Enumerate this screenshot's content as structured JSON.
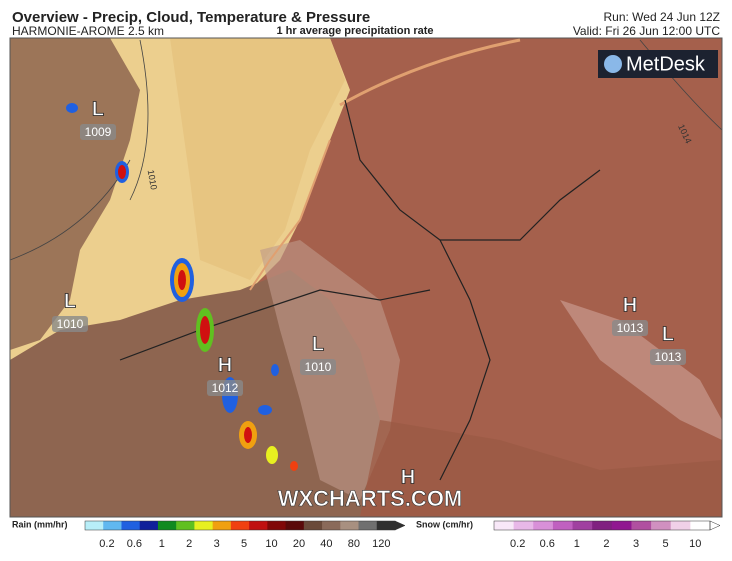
{
  "header": {
    "title": "Overview - Precip, Cloud, Temperature & Pressure",
    "model": "HARMONIE-AROME 2.5 km",
    "product": "1 hr average precipitation rate",
    "run": "Run: Wed 24 Jun 12Z",
    "valid": "Valid: Fri 26 Jun 12:00 UTC"
  },
  "logo": "MetDesk",
  "watermark": "WXCHARTS.COM",
  "pressure_centers": [
    {
      "kind": "L",
      "value": 1009
    },
    {
      "kind": "L",
      "value": 1010
    },
    {
      "kind": "H",
      "value": 1012
    },
    {
      "kind": "L",
      "value": 1010
    },
    {
      "kind": "H",
      "value": 1013
    },
    {
      "kind": "L",
      "value": 1013
    },
    {
      "kind": "H"
    }
  ],
  "isobar_labels": [
    1010,
    1014
  ],
  "legends": {
    "rain": {
      "label": "Rain (mm/hr)",
      "ticks": [
        0.2,
        0.6,
        1,
        2,
        3,
        5,
        10,
        20,
        40,
        80,
        120
      ],
      "colors": [
        "#b8eef8",
        "#60b8f0",
        "#2060e0",
        "#10209a",
        "#108a20",
        "#60c020",
        "#e8f020",
        "#f0a010",
        "#f04010",
        "#c01010",
        "#800808",
        "#5a0a0a",
        "#6a4a3a",
        "#8a6a5a",
        "#a89080",
        "#707070",
        "#303030"
      ]
    },
    "snow": {
      "label": "Snow (cm/hr)",
      "ticks": [
        0.2,
        0.6,
        1,
        2,
        3,
        5,
        10
      ],
      "colors": [
        "#f8e8f8",
        "#e8b8e8",
        "#d890d8",
        "#c060c0",
        "#a040a0",
        "#802080",
        "#901890",
        "#b050a0",
        "#d090c0",
        "#f0d0e8",
        "#ffffff"
      ]
    }
  }
}
